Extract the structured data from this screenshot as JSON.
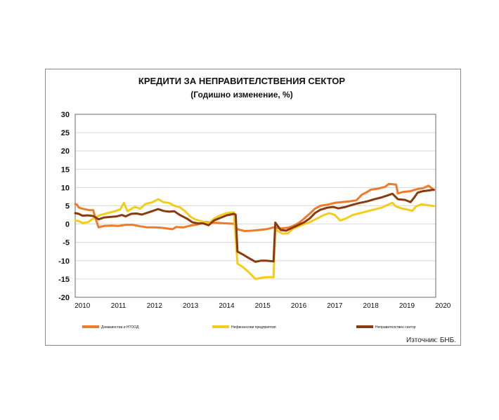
{
  "chart_data": {
    "type": "line",
    "title": "КРЕДИТИ ЗА НЕПРАВИТЕЛСТВЕНИЯ СЕКТОР",
    "subtitle": "(Годишно изменение, %)",
    "source": "Източник: БНБ.",
    "ylim": [
      -20,
      30
    ],
    "yticks": [
      "30",
      "25",
      "20",
      "15",
      "10",
      "5",
      "0",
      "-5",
      "-10",
      "-15",
      "-20"
    ],
    "xlim": [
      2009.8,
      2019.8
    ],
    "xticks": [
      {
        "x": 2010,
        "label": "2010"
      },
      {
        "x": 2011,
        "label": "2011"
      },
      {
        "x": 2012,
        "label": "2012"
      },
      {
        "x": 2013,
        "label": "2013"
      },
      {
        "x": 2014,
        "label": "2014"
      },
      {
        "x": 2015,
        "label": "2015"
      },
      {
        "x": 2016,
        "label": "2016"
      },
      {
        "x": 2017,
        "label": "2017"
      },
      {
        "x": 2018,
        "label": "2018"
      },
      {
        "x": 2019,
        "label": "2019"
      },
      {
        "x": 2020,
        "label": "2020"
      }
    ],
    "grid": true,
    "legend_position": "bottom",
    "series": [
      {
        "name": "Домакинства и НТООД",
        "color": "#ee7a2a",
        "points": [
          [
            2009.8,
            5.5
          ],
          [
            2009.85,
            5.3
          ],
          [
            2009.9,
            4.5
          ],
          [
            2010.0,
            4.2
          ],
          [
            2010.1,
            4.0
          ],
          [
            2010.2,
            3.8
          ],
          [
            2010.3,
            3.8
          ],
          [
            2010.35,
            2.0
          ],
          [
            2010.45,
            -0.9
          ],
          [
            2010.6,
            -0.5
          ],
          [
            2010.8,
            -0.4
          ],
          [
            2011.0,
            -0.5
          ],
          [
            2011.2,
            -0.2
          ],
          [
            2011.4,
            -0.2
          ],
          [
            2011.6,
            -0.6
          ],
          [
            2011.8,
            -0.9
          ],
          [
            2012.0,
            -0.9
          ],
          [
            2012.2,
            -1.0
          ],
          [
            2012.35,
            -1.2
          ],
          [
            2012.5,
            -1.4
          ],
          [
            2012.6,
            -0.8
          ],
          [
            2012.8,
            -0.9
          ],
          [
            2013.0,
            -0.4
          ],
          [
            2013.2,
            -0.1
          ],
          [
            2013.4,
            0.6
          ],
          [
            2013.6,
            0.4
          ],
          [
            2013.8,
            0.3
          ],
          [
            2014.0,
            0.2
          ],
          [
            2014.2,
            0.1
          ],
          [
            2014.3,
            -1.4
          ],
          [
            2014.5,
            -1.9
          ],
          [
            2014.7,
            -1.8
          ],
          [
            2014.9,
            -1.6
          ],
          [
            2015.1,
            -1.4
          ],
          [
            2015.3,
            -0.9
          ],
          [
            2015.5,
            -1.2
          ],
          [
            2015.7,
            -1.0
          ],
          [
            2015.85,
            -0.5
          ],
          [
            2016.0,
            0.3
          ],
          [
            2016.15,
            1.5
          ],
          [
            2016.3,
            2.8
          ],
          [
            2016.45,
            4.2
          ],
          [
            2016.6,
            5.0
          ],
          [
            2016.8,
            5.3
          ],
          [
            2017.0,
            5.8
          ],
          [
            2017.2,
            6.0
          ],
          [
            2017.4,
            6.2
          ],
          [
            2017.6,
            6.5
          ],
          [
            2017.75,
            8.0
          ],
          [
            2017.9,
            8.8
          ],
          [
            2018.0,
            9.4
          ],
          [
            2018.2,
            9.7
          ],
          [
            2018.4,
            10.2
          ],
          [
            2018.5,
            11.0
          ],
          [
            2018.7,
            10.8
          ],
          [
            2018.75,
            8.4
          ],
          [
            2018.9,
            8.8
          ],
          [
            2019.1,
            9.0
          ],
          [
            2019.3,
            9.6
          ],
          [
            2019.45,
            9.8
          ],
          [
            2019.6,
            10.5
          ],
          [
            2019.7,
            9.7
          ],
          [
            2019.75,
            9.3
          ]
        ]
      },
      {
        "name": "Нефинансови предприятия",
        "color": "#f5cc1a",
        "points": [
          [
            2009.8,
            1.0
          ],
          [
            2009.9,
            0.8
          ],
          [
            2010.0,
            0.3
          ],
          [
            2010.15,
            0.5
          ],
          [
            2010.3,
            1.5
          ],
          [
            2010.5,
            2.5
          ],
          [
            2010.7,
            3.0
          ],
          [
            2010.9,
            3.5
          ],
          [
            2011.05,
            4.0
          ],
          [
            2011.15,
            5.8
          ],
          [
            2011.25,
            3.5
          ],
          [
            2011.45,
            4.7
          ],
          [
            2011.6,
            4.2
          ],
          [
            2011.75,
            5.5
          ],
          [
            2011.95,
            6.0
          ],
          [
            2012.1,
            6.8
          ],
          [
            2012.25,
            6.0
          ],
          [
            2012.4,
            5.8
          ],
          [
            2012.55,
            5.0
          ],
          [
            2012.7,
            4.6
          ],
          [
            2012.85,
            3.5
          ],
          [
            2013.0,
            2.0
          ],
          [
            2013.15,
            1.2
          ],
          [
            2013.3,
            0.8
          ],
          [
            2013.5,
            0.2
          ],
          [
            2013.65,
            1.5
          ],
          [
            2013.8,
            2.3
          ],
          [
            2014.0,
            3.0
          ],
          [
            2014.2,
            3.2
          ],
          [
            2014.3,
            -10.8
          ],
          [
            2014.45,
            -11.7
          ],
          [
            2014.6,
            -13.0
          ],
          [
            2014.8,
            -15.0
          ],
          [
            2014.95,
            -14.7
          ],
          [
            2015.1,
            -14.5
          ],
          [
            2015.3,
            -14.5
          ],
          [
            2015.35,
            -1.5
          ],
          [
            2015.55,
            -2.6
          ],
          [
            2015.7,
            -2.5
          ],
          [
            2015.85,
            -1.2
          ],
          [
            2016.0,
            -0.6
          ],
          [
            2016.15,
            0.0
          ],
          [
            2016.3,
            0.5
          ],
          [
            2016.5,
            1.5
          ],
          [
            2016.7,
            2.5
          ],
          [
            2016.85,
            3.0
          ],
          [
            2017.0,
            2.5
          ],
          [
            2017.15,
            1.0
          ],
          [
            2017.3,
            1.5
          ],
          [
            2017.5,
            2.5
          ],
          [
            2017.7,
            3.0
          ],
          [
            2017.9,
            3.5
          ],
          [
            2018.1,
            4.0
          ],
          [
            2018.3,
            4.5
          ],
          [
            2018.45,
            5.2
          ],
          [
            2018.6,
            5.8
          ],
          [
            2018.7,
            4.8
          ],
          [
            2018.85,
            4.3
          ],
          [
            2019.0,
            4.0
          ],
          [
            2019.15,
            3.6
          ],
          [
            2019.25,
            4.8
          ],
          [
            2019.4,
            5.4
          ],
          [
            2019.55,
            5.2
          ],
          [
            2019.7,
            5.0
          ],
          [
            2019.75,
            4.9
          ]
        ]
      },
      {
        "name": "Неправителствен сектор",
        "color": "#8a3a0e",
        "points": [
          [
            2009.8,
            3.0
          ],
          [
            2009.9,
            2.8
          ],
          [
            2010.0,
            2.3
          ],
          [
            2010.15,
            2.4
          ],
          [
            2010.3,
            2.2
          ],
          [
            2010.45,
            1.3
          ],
          [
            2010.6,
            1.8
          ],
          [
            2010.8,
            2.0
          ],
          [
            2010.95,
            2.1
          ],
          [
            2011.1,
            2.5
          ],
          [
            2011.2,
            2.1
          ],
          [
            2011.35,
            2.8
          ],
          [
            2011.5,
            2.9
          ],
          [
            2011.65,
            2.6
          ],
          [
            2011.8,
            3.1
          ],
          [
            2011.95,
            3.6
          ],
          [
            2012.1,
            4.1
          ],
          [
            2012.25,
            3.6
          ],
          [
            2012.4,
            3.4
          ],
          [
            2012.55,
            3.5
          ],
          [
            2012.7,
            2.5
          ],
          [
            2012.9,
            1.5
          ],
          [
            2013.05,
            0.5
          ],
          [
            2013.2,
            0.2
          ],
          [
            2013.35,
            0.2
          ],
          [
            2013.5,
            -0.3
          ],
          [
            2013.65,
            1.0
          ],
          [
            2013.8,
            1.6
          ],
          [
            2014.0,
            2.4
          ],
          [
            2014.2,
            2.8
          ],
          [
            2014.25,
            2.6
          ],
          [
            2014.3,
            -7.5
          ],
          [
            2014.45,
            -8.3
          ],
          [
            2014.6,
            -9.2
          ],
          [
            2014.8,
            -10.3
          ],
          [
            2014.95,
            -10.0
          ],
          [
            2015.1,
            -10.0
          ],
          [
            2015.3,
            -10.2
          ],
          [
            2015.35,
            0.4
          ],
          [
            2015.5,
            -1.6
          ],
          [
            2015.65,
            -1.8
          ],
          [
            2015.85,
            -0.9
          ],
          [
            2016.0,
            -0.2
          ],
          [
            2016.15,
            0.5
          ],
          [
            2016.3,
            1.5
          ],
          [
            2016.45,
            3.0
          ],
          [
            2016.6,
            3.9
          ],
          [
            2016.8,
            4.5
          ],
          [
            2016.95,
            4.7
          ],
          [
            2017.1,
            4.3
          ],
          [
            2017.3,
            4.7
          ],
          [
            2017.5,
            5.3
          ],
          [
            2017.7,
            5.8
          ],
          [
            2017.9,
            6.2
          ],
          [
            2018.1,
            6.8
          ],
          [
            2018.3,
            7.3
          ],
          [
            2018.45,
            7.8
          ],
          [
            2018.6,
            8.3
          ],
          [
            2018.75,
            6.8
          ],
          [
            2018.95,
            6.6
          ],
          [
            2019.1,
            6.0
          ],
          [
            2019.2,
            7.2
          ],
          [
            2019.3,
            8.6
          ],
          [
            2019.45,
            9.0
          ],
          [
            2019.6,
            9.2
          ],
          [
            2019.75,
            9.4
          ]
        ]
      }
    ]
  }
}
